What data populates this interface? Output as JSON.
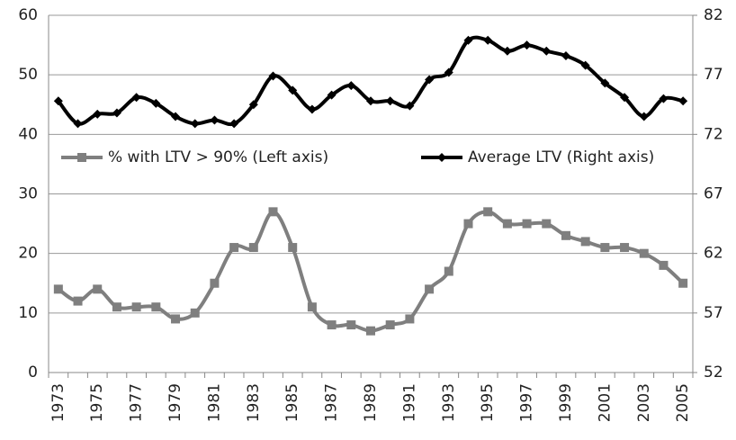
{
  "chart_data": {
    "type": "line",
    "categories": [
      "1973",
      null,
      "1975",
      null,
      "1977",
      null,
      "1979",
      null,
      "1981",
      null,
      "1983",
      null,
      "1985",
      null,
      "1987",
      null,
      "1989",
      null,
      "1991",
      null,
      "1993",
      null,
      "1995",
      null,
      "1997",
      null,
      "1999",
      null,
      "2001",
      null,
      "2003",
      null,
      "2005"
    ],
    "series": [
      {
        "name": "% with LTV > 90% (Left axis)",
        "color": "#7f7f7f",
        "marker": "square",
        "values": [
          14,
          12,
          14,
          11,
          11,
          11,
          9,
          10,
          15,
          21,
          21,
          27,
          21,
          11,
          8,
          8,
          7,
          8,
          9,
          14,
          17,
          25,
          27,
          25,
          25,
          25,
          23,
          22,
          21,
          21,
          20,
          18,
          15
        ]
      },
      {
        "name": "Average LTV (Right axis)",
        "color": "#000000",
        "marker": "diamond",
        "axis": "y2",
        "values": [
          74.8,
          72.9,
          73.7,
          73.8,
          75.1,
          74.6,
          73.5,
          72.9,
          73.2,
          72.9,
          74.5,
          76.9,
          75.7,
          74.1,
          75.3,
          76.1,
          74.8,
          74.8,
          74.4,
          76.6,
          77.2,
          79.9,
          79.9,
          79.0,
          79.5,
          79.0,
          78.6,
          77.8,
          76.3,
          75.1,
          73.5,
          75.0,
          74.8
        ]
      }
    ],
    "ylim": [
      0,
      60
    ],
    "yticks": [
      0,
      10,
      20,
      30,
      40,
      50,
      60
    ],
    "y2lim": [
      52,
      82
    ],
    "y2ticks": [
      52,
      57,
      62,
      67,
      72,
      77,
      82
    ],
    "grid": true,
    "smooth": true,
    "legend": "middle"
  }
}
